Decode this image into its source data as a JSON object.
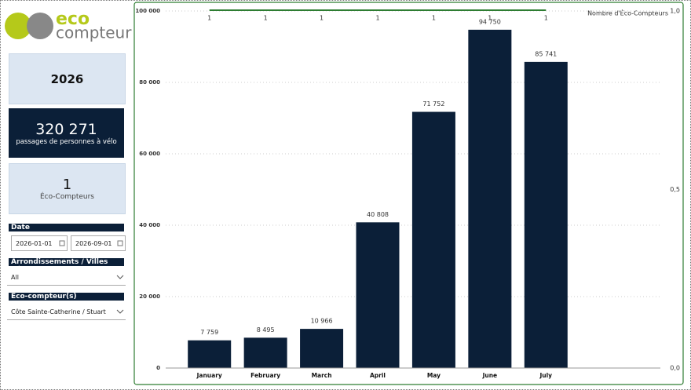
{
  "logo": {
    "line1": "eco",
    "line2": "compteur"
  },
  "year_card": "2026",
  "passages_card": {
    "value": "320 271",
    "label": "passages de personnes à vélo"
  },
  "counters_card": {
    "value": "1",
    "label": "Éco-Compteurs"
  },
  "filters": {
    "date": {
      "label": "Date",
      "start": "2026-01-01",
      "end": "2026-09-01"
    },
    "arrondissements": {
      "label": "Arrondissements / Villes liées",
      "value": "All"
    },
    "compteur": {
      "label": "Éco-compteur(s)",
      "value": "Côte Sainte-Catherine / Stuart"
    }
  },
  "chart_data": {
    "type": "bar",
    "categories": [
      "January",
      "February",
      "March",
      "April",
      "May",
      "June",
      "July"
    ],
    "values": [
      7759,
      8495,
      10966,
      40808,
      71752,
      94750,
      85741
    ],
    "value_labels": [
      "7 759",
      "8 495",
      "10 966",
      "40 808",
      "71 752",
      "94 750",
      "85 741"
    ],
    "color": "#0b1f38",
    "ylim": [
      0,
      100000
    ],
    "yticks": [
      0,
      {
        "value": 20000,
        "label": "20 000"
      },
      {
        "value": 40000,
        "label": "40 000"
      },
      {
        "value": 60000,
        "label": "60 000"
      },
      {
        "value": 80000,
        "label": "80 000"
      },
      {
        "value": 100000,
        "label": "100 000"
      }
    ],
    "grid": true,
    "line": {
      "name": "Nombre d'Éco-Compteurs",
      "color": "#2e7d32",
      "axis": "y2",
      "values": [
        1,
        1,
        1,
        1,
        1,
        1,
        1
      ]
    },
    "y2lim": [
      0,
      1
    ],
    "y2ticks": [
      {
        "value": 0,
        "label": "0,0"
      },
      {
        "value": 0.5,
        "label": "0,5"
      },
      {
        "value": 1,
        "label": "1,0"
      }
    ]
  }
}
